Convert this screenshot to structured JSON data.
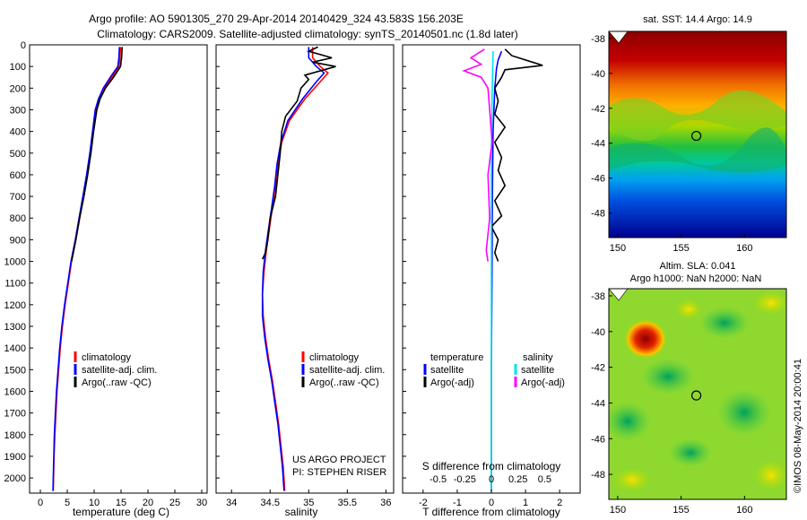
{
  "title_line1": "Argo profile: AO 5901305_270 29-Apr-2014 20140429_324 43.583S 156.203E",
  "title_line2": "Climatology: CARS2009. Satellite-adjusted climatology: synTS_20140501.nc (1.8d later)",
  "colors": {
    "climatology": "#ff0000",
    "satellite": "#0000ff",
    "argo": "#000000",
    "sal_satellite": "#00e5e5",
    "sal_argo": "#ff00ff"
  },
  "chart_data": [
    {
      "type": "line",
      "panel": "temperature",
      "xlabel": "temperature (deg C)",
      "xlim": [
        -2,
        31
      ],
      "xticks": [
        0,
        5,
        10,
        15,
        20,
        25,
        30
      ],
      "ylim": [
        2070,
        0
      ],
      "yticks": [
        0,
        100,
        200,
        300,
        400,
        500,
        600,
        700,
        800,
        900,
        1000,
        1100,
        1200,
        1300,
        1400,
        1500,
        1600,
        1700,
        1800,
        1900,
        2000
      ],
      "legend": [
        "climatology",
        "satellite-adj. clim.",
        "Argo(..raw -QC)"
      ],
      "series": [
        {
          "name": "climatology",
          "color_key": "climatology",
          "points": [
            [
              14.9,
              10
            ],
            [
              14.8,
              60
            ],
            [
              14.6,
              100
            ],
            [
              13.3,
              150
            ],
            [
              11.9,
              200
            ],
            [
              11.0,
              250
            ],
            [
              10.4,
              300
            ],
            [
              9.8,
              400
            ],
            [
              9.3,
              500
            ],
            [
              8.7,
              600
            ],
            [
              8.0,
              700
            ],
            [
              7.3,
              800
            ],
            [
              6.6,
              900
            ],
            [
              5.8,
              1000
            ],
            [
              5.2,
              1100
            ],
            [
              4.6,
              1200
            ],
            [
              4.1,
              1300
            ],
            [
              3.7,
              1400
            ],
            [
              3.4,
              1500
            ],
            [
              3.1,
              1600
            ],
            [
              2.9,
              1700
            ],
            [
              2.7,
              1800
            ],
            [
              2.55,
              1900
            ],
            [
              2.45,
              2000
            ],
            [
              2.4,
              2060
            ]
          ]
        },
        {
          "name": "satellite-adj. clim.",
          "color_key": "satellite",
          "points": [
            [
              14.7,
              10
            ],
            [
              14.6,
              60
            ],
            [
              14.4,
              100
            ],
            [
              13.0,
              150
            ],
            [
              11.7,
              200
            ],
            [
              10.8,
              250
            ],
            [
              10.2,
              300
            ],
            [
              9.7,
              400
            ],
            [
              9.2,
              500
            ],
            [
              8.6,
              600
            ],
            [
              7.9,
              700
            ],
            [
              7.2,
              800
            ],
            [
              6.5,
              900
            ],
            [
              5.7,
              1000
            ],
            [
              5.1,
              1100
            ],
            [
              4.5,
              1200
            ],
            [
              4.0,
              1300
            ],
            [
              3.6,
              1400
            ],
            [
              3.3,
              1500
            ],
            [
              3.0,
              1600
            ],
            [
              2.8,
              1700
            ],
            [
              2.6,
              1800
            ],
            [
              2.5,
              1900
            ],
            [
              2.4,
              2000
            ],
            [
              2.35,
              2060
            ]
          ]
        },
        {
          "name": "Argo(..raw -QC)",
          "color_key": "argo",
          "points": [
            [
              15.2,
              10
            ],
            [
              15.1,
              60
            ],
            [
              14.9,
              100
            ],
            [
              13.6,
              150
            ],
            [
              12.1,
              200
            ],
            [
              11.1,
              250
            ],
            [
              10.5,
              300
            ],
            [
              9.9,
              400
            ],
            [
              9.4,
              500
            ],
            [
              8.8,
              600
            ],
            [
              8.1,
              700
            ],
            [
              7.3,
              800
            ],
            [
              6.6,
              900
            ],
            [
              5.8,
              1000
            ]
          ]
        }
      ]
    },
    {
      "type": "line",
      "panel": "salinity",
      "xlabel": "salinity",
      "xlim": [
        33.8,
        36.1
      ],
      "xticks": [
        34,
        34.5,
        35,
        35.5,
        36
      ],
      "ylim": [
        2070,
        0
      ],
      "legend": [
        "climatology",
        "satellite-adj. clim.",
        "Argo(..raw -QC)"
      ],
      "credit_line1": "US ARGO PROJECT",
      "credit_line2": "PI: STEPHEN RISER",
      "series": [
        {
          "name": "climatology",
          "color_key": "climatology",
          "points": [
            [
              35.05,
              10
            ],
            [
              35.05,
              60
            ],
            [
              35.15,
              100
            ],
            [
              35.25,
              130
            ],
            [
              35.15,
              170
            ],
            [
              34.95,
              250
            ],
            [
              34.75,
              350
            ],
            [
              34.65,
              450
            ],
            [
              34.6,
              550
            ],
            [
              34.57,
              650
            ],
            [
              34.53,
              750
            ],
            [
              34.49,
              850
            ],
            [
              34.45,
              950
            ],
            [
              34.42,
              1050
            ],
            [
              34.4,
              1150
            ],
            [
              34.41,
              1250
            ],
            [
              34.44,
              1350
            ],
            [
              34.48,
              1450
            ],
            [
              34.53,
              1550
            ],
            [
              34.57,
              1650
            ],
            [
              34.61,
              1750
            ],
            [
              34.64,
              1850
            ],
            [
              34.67,
              1950
            ],
            [
              34.69,
              2060
            ]
          ]
        },
        {
          "name": "satellite-adj. clim.",
          "color_key": "satellite",
          "points": [
            [
              35.0,
              10
            ],
            [
              35.0,
              60
            ],
            [
              35.1,
              100
            ],
            [
              35.2,
              130
            ],
            [
              35.1,
              170
            ],
            [
              34.92,
              250
            ],
            [
              34.73,
              350
            ],
            [
              34.64,
              450
            ],
            [
              34.59,
              550
            ],
            [
              34.56,
              650
            ],
            [
              34.52,
              750
            ],
            [
              34.48,
              850
            ],
            [
              34.44,
              950
            ],
            [
              34.41,
              1050
            ],
            [
              34.4,
              1150
            ],
            [
              34.4,
              1250
            ],
            [
              34.43,
              1350
            ],
            [
              34.47,
              1450
            ],
            [
              34.52,
              1550
            ],
            [
              34.56,
              1650
            ],
            [
              34.6,
              1750
            ],
            [
              34.63,
              1850
            ],
            [
              34.66,
              1950
            ],
            [
              34.68,
              2060
            ]
          ]
        },
        {
          "name": "Argo(..raw -QC)",
          "color_key": "argo",
          "points": [
            [
              35.12,
              10
            ],
            [
              35.0,
              30
            ],
            [
              35.3,
              60
            ],
            [
              35.05,
              80
            ],
            [
              35.35,
              100
            ],
            [
              34.95,
              140
            ],
            [
              35.0,
              160
            ],
            [
              34.9,
              200
            ],
            [
              34.85,
              260
            ],
            [
              34.7,
              330
            ],
            [
              34.65,
              400
            ],
            [
              34.63,
              500
            ],
            [
              34.6,
              600
            ],
            [
              34.57,
              700
            ],
            [
              34.5,
              800
            ],
            [
              34.47,
              900
            ],
            [
              34.44,
              960
            ],
            [
              34.4,
              990
            ]
          ]
        }
      ]
    },
    {
      "type": "line",
      "panel": "difference",
      "xlabel": "T difference from climatology",
      "xlabel_top": "S difference from climatology",
      "xlim": [
        -2.6,
        2.6
      ],
      "xticks": [
        -2,
        -1,
        0,
        1,
        2
      ],
      "xticks_top": [
        "-0.5",
        "-0.25",
        "0",
        "0.25",
        "0.5"
      ],
      "ylim": [
        2070,
        0
      ],
      "legend_header_t": "temperature",
      "legend_header_s": "salinity",
      "legend": [
        "satellite",
        "Argo(-adj)",
        "satellite",
        "Argo(-adj)"
      ],
      "series": [
        {
          "name": "satellite",
          "group": "temperature",
          "color_key": "satellite",
          "points": [
            [
              0.3,
              30
            ],
            [
              0.2,
              70
            ],
            [
              0.15,
              110
            ],
            [
              0.1,
              200
            ],
            [
              0.05,
              400
            ],
            [
              0.03,
              700
            ],
            [
              0.02,
              1000
            ],
            [
              0.0,
              1500
            ],
            [
              0.0,
              2060
            ]
          ]
        },
        {
          "name": "Argo(-adj)",
          "group": "temperature",
          "color_key": "argo",
          "points": [
            [
              0.4,
              20
            ],
            [
              0.6,
              50
            ],
            [
              1.2,
              80
            ],
            [
              1.5,
              95
            ],
            [
              0.4,
              115
            ],
            [
              0.3,
              150
            ],
            [
              0.1,
              200
            ],
            [
              0.2,
              260
            ],
            [
              0.1,
              320
            ],
            [
              0.4,
              380
            ],
            [
              0.1,
              450
            ],
            [
              0.3,
              520
            ],
            [
              0.2,
              580
            ],
            [
              0.4,
              650
            ],
            [
              0.1,
              720
            ],
            [
              0.3,
              790
            ],
            [
              0.0,
              840
            ],
            [
              0.2,
              900
            ],
            [
              0.1,
              960
            ],
            [
              0.2,
              1000
            ]
          ]
        },
        {
          "name": "satellite",
          "group": "salinity",
          "color_key": "sal_satellite",
          "points": [
            [
              0.05,
              30
            ],
            [
              0.04,
              100
            ],
            [
              0.02,
              250
            ],
            [
              0.0,
              500
            ],
            [
              0.0,
              1000
            ],
            [
              0.0,
              1500
            ],
            [
              0.0,
              2060
            ]
          ]
        },
        {
          "name": "Argo(-adj)",
          "group": "salinity",
          "color_key": "sal_argo",
          "points": [
            [
              -0.2,
              20
            ],
            [
              -0.6,
              60
            ],
            [
              -0.3,
              90
            ],
            [
              -0.8,
              120
            ],
            [
              -0.3,
              150
            ],
            [
              -0.1,
              200
            ],
            [
              -0.05,
              300
            ],
            [
              0.02,
              450
            ],
            [
              -0.1,
              600
            ],
            [
              -0.05,
              800
            ],
            [
              -0.15,
              950
            ],
            [
              -0.1,
              1000
            ]
          ]
        }
      ]
    },
    {
      "type": "heatmap",
      "panel": "sst_map",
      "title": "sat. SST: 14.4  Argo: 14.9",
      "xticks": [
        150,
        155,
        160
      ],
      "yticks": [
        -38,
        -40,
        -42,
        -44,
        -46,
        -48
      ],
      "xlim": [
        149.3,
        163.3
      ],
      "ylim": [
        -49.4,
        -37.6
      ],
      "marker": {
        "lon": 156.2,
        "lat": -43.58
      }
    },
    {
      "type": "heatmap",
      "panel": "sla_map",
      "title_line1": "Altim. SLA: 0.041",
      "title_line2": "Argo h1000: NaN h2000: NaN",
      "xticks": [
        150,
        155,
        160
      ],
      "yticks": [
        -38,
        -40,
        -42,
        -44,
        -46,
        -48
      ],
      "xlim": [
        149.3,
        163.3
      ],
      "ylim": [
        -49.4,
        -37.6
      ],
      "marker": {
        "lon": 156.2,
        "lat": -43.58
      },
      "side_label": "©IMOS 08-May-2014 20:00:41"
    }
  ]
}
